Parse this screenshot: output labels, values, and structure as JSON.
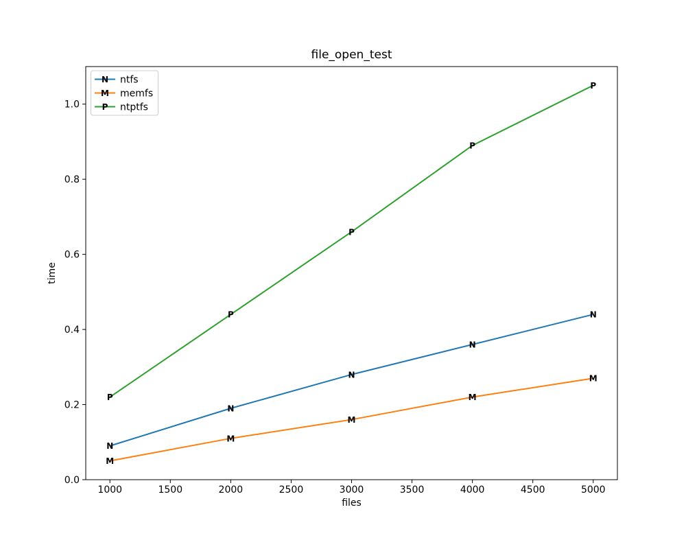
{
  "figure": {
    "background": "#ffffff",
    "axis_color": "#000000",
    "legend_border_color": "#cccccc"
  },
  "chart_data": {
    "type": "line",
    "title": "file_open_test",
    "xlabel": "files",
    "ylabel": "time",
    "x": [
      1000,
      2000,
      3000,
      4000,
      5000
    ],
    "series": [
      {
        "name": "ntfs",
        "color": "#1f77b4",
        "marker": "N",
        "values": [
          0.09,
          0.19,
          0.28,
          0.36,
          0.44
        ]
      },
      {
        "name": "memfs",
        "color": "#ff7f0e",
        "marker": "M",
        "values": [
          0.05,
          0.11,
          0.16,
          0.22,
          0.27
        ]
      },
      {
        "name": "ntptfs",
        "color": "#2ca02c",
        "marker": "P",
        "values": [
          0.22,
          0.44,
          0.66,
          0.89,
          1.05
        ]
      }
    ],
    "xlim": [
      800,
      5200
    ],
    "ylim": [
      0,
      1.1
    ],
    "xticks": [
      1000,
      1500,
      2000,
      2500,
      3000,
      3500,
      4000,
      4500,
      5000
    ],
    "yticks": [
      0.0,
      0.2,
      0.4,
      0.6,
      0.8,
      1.0
    ],
    "ytick_labels": [
      "0.0",
      "0.2",
      "0.4",
      "0.6",
      "0.8",
      "1.0"
    ],
    "grid": false,
    "legend_position": "upper left"
  }
}
